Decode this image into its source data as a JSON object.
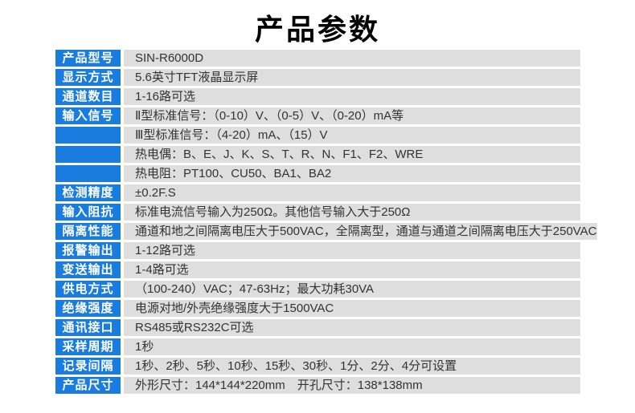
{
  "page": {
    "title": "产品参数"
  },
  "colors": {
    "label_bg": "#1b7ce0",
    "label_text": "#ffffff",
    "value_bg": "#dedede",
    "value_text": "#333333",
    "title_text": "#000000",
    "page_bg": "#ffffff"
  },
  "table": {
    "rows": [
      {
        "label": "产品型号",
        "value": "SIN-R6000D"
      },
      {
        "label": "显示方式",
        "value": "5.6英寸TFT液晶显示屏"
      },
      {
        "label": "通道数目",
        "value": "1-16路可选"
      },
      {
        "label": "输入信号",
        "value": "Ⅱ型标准信号：（0-10）V、（0-5）V、（0-20）mA等"
      },
      {
        "label": "",
        "value": "Ⅲ型标准信号：（4-20）mA、（15）V"
      },
      {
        "label": "",
        "value": "热电偶：B、E、J、K、S、T、R、N、F1、F2、WRE"
      },
      {
        "label": "",
        "value": "热电阻：PT100、CU50、BA1、BA2"
      },
      {
        "label": "检测精度",
        "value": "±0.2F.S"
      },
      {
        "label": "输入阻抗",
        "value": "标准电流信号输入为250Ω。其他信号输入大于250Ω"
      },
      {
        "label": "隔离性能",
        "value": "通道和地之间隔离电压大于500VAC，全隔离型，通道与通道之间隔离电压大于250VAC"
      },
      {
        "label": "报警输出",
        "value": "1-12路可选"
      },
      {
        "label": "变送输出",
        "value": "1-4路可选"
      },
      {
        "label": "供电方式",
        "value": "（100-240）VAC；47-63Hz；最大功耗30VA"
      },
      {
        "label": "绝缘强度",
        "value": "电源对地/外壳绝缘强度大于1500VAC"
      },
      {
        "label": "通讯接口",
        "value": "RS485或RS232C可选"
      },
      {
        "label": "采样周期",
        "value": "1秒"
      },
      {
        "label": "记录间隔",
        "value": "1秒、2秒、5秒、10秒、15秒、30秒、1分、2分、4分可设置"
      },
      {
        "label": "产品尺寸",
        "value": "外形尺寸：144*144*220mm　开孔尺寸：138*138mm"
      }
    ]
  }
}
